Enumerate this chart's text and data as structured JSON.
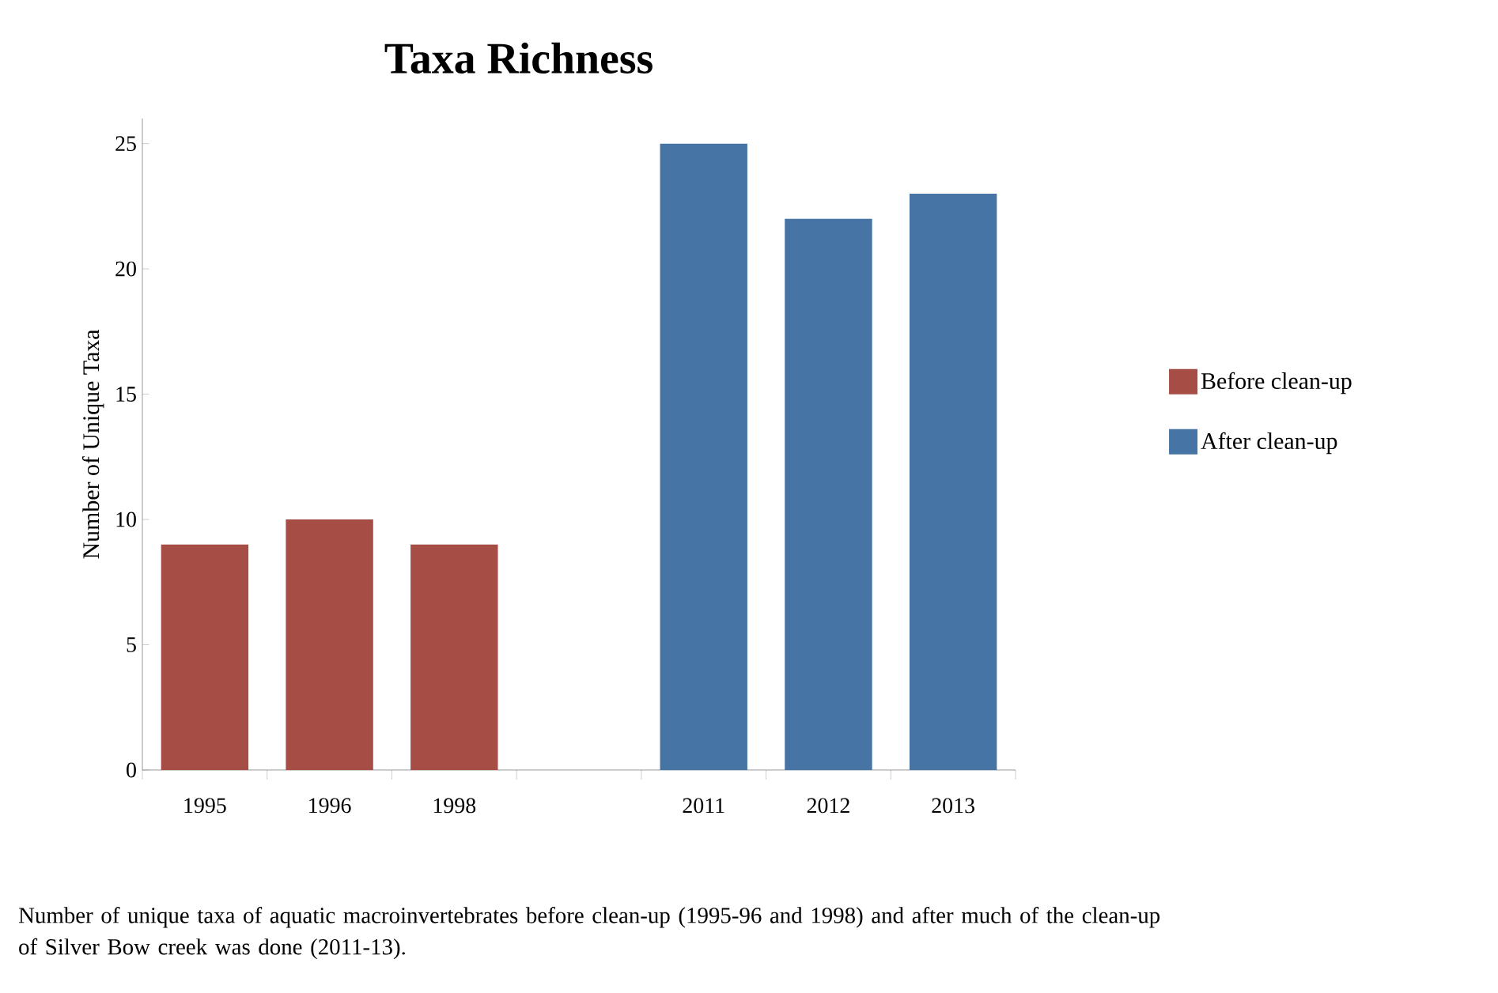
{
  "chart_data": {
    "type": "bar",
    "title": "Taxa Richness",
    "ylabel": "Number of Unique Taxa",
    "categories": [
      "1995",
      "1996",
      "1998",
      null,
      "2011",
      "2012",
      "2013"
    ],
    "series": [
      {
        "name": "Before clean-up",
        "color": "#a64d45",
        "values": [
          9,
          10,
          9,
          null,
          null,
          null,
          null
        ]
      },
      {
        "name": "After clean-up",
        "color": "#4674a5",
        "values": [
          null,
          null,
          null,
          null,
          25,
          22,
          23
        ]
      }
    ],
    "ylim": [
      0,
      26
    ],
    "yticks": [
      0,
      5,
      10,
      15,
      20,
      25
    ],
    "legend": "right",
    "annotations": [
      "Number of unique taxa of aquatic macroinvertebrates before clean-up (1995-96 and 1998) and after much of the clean-up of Silver Bow creek was done (2011-13)."
    ]
  }
}
